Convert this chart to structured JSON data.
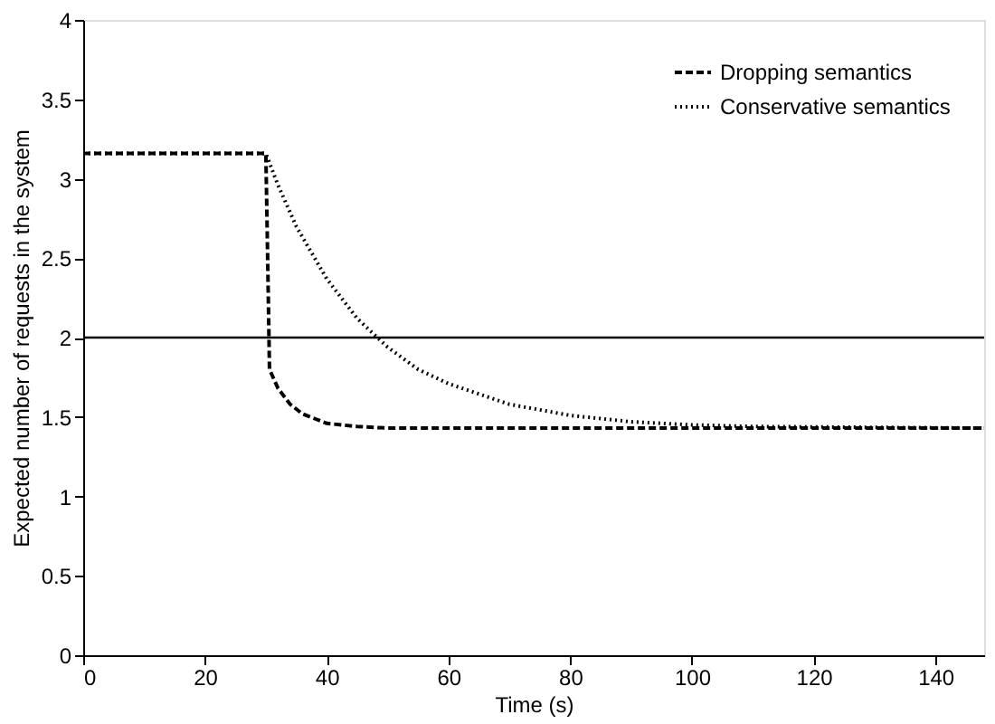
{
  "chart_data": {
    "type": "line",
    "xlabel": "Time (s)",
    "ylabel": "Expected number of requests in the system",
    "xlim": [
      0,
      148
    ],
    "ylim": [
      0,
      4
    ],
    "xticks": [
      0,
      20,
      40,
      60,
      80,
      100,
      120,
      140
    ],
    "yticks": [
      0,
      0.5,
      1,
      1.5,
      2,
      2.5,
      3,
      3.5,
      4
    ],
    "grid": false,
    "legend": "top right",
    "marker": "none",
    "ref_lines": [
      {
        "axis": "y",
        "value": 2,
        "color": "#000000",
        "line_style": "solid"
      }
    ],
    "series": [
      {
        "name": "Dropping semantics",
        "color": "#000000",
        "line_style": "dashed",
        "x": [
          0,
          30,
          30.3,
          30.6,
          32,
          34,
          36,
          38,
          40,
          45,
          50,
          148
        ],
        "values": [
          3.16,
          3.16,
          2.5,
          1.8,
          1.68,
          1.58,
          1.52,
          1.49,
          1.46,
          1.44,
          1.43,
          1.43
        ]
      },
      {
        "name": "Conservative semantics",
        "color": "#000000",
        "line_style": "dotted",
        "x": [
          0,
          30,
          32,
          35,
          40,
          45,
          50,
          55,
          60,
          70,
          80,
          90,
          100,
          110,
          148
        ],
        "values": [
          3.16,
          3.16,
          2.96,
          2.7,
          2.37,
          2.12,
          1.94,
          1.8,
          1.71,
          1.58,
          1.51,
          1.47,
          1.45,
          1.44,
          1.43
        ]
      }
    ]
  }
}
